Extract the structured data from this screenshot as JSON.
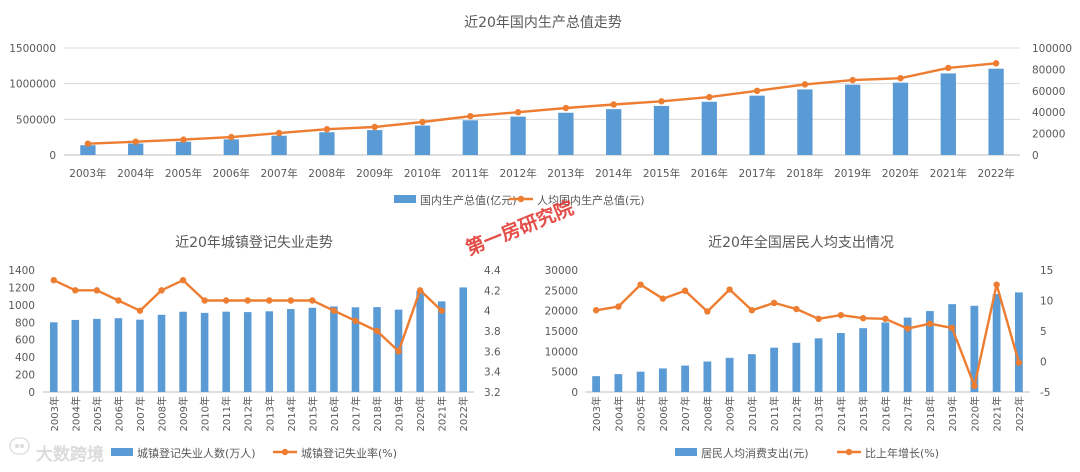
{
  "chart_data": [
    {
      "type": "bar+line",
      "title": "近20年国内生产总值走势",
      "categories": [
        "2003年",
        "2004年",
        "2005年",
        "2006年",
        "2007年",
        "2008年",
        "2009年",
        "2010年",
        "2011年",
        "2012年",
        "2013年",
        "2014年",
        "2015年",
        "2016年",
        "2017年",
        "2018年",
        "2019年",
        "2020年",
        "2021年",
        "2022年"
      ],
      "y_left_ticks": [
        "0",
        "500000",
        "1000000",
        "1500000"
      ],
      "ylim_left": [
        0,
        1500000
      ],
      "y_right_ticks": [
        "0",
        "20000",
        "40000",
        "60000",
        "80000",
        "100000"
      ],
      "ylim_right": [
        0,
        100000
      ],
      "series": [
        {
          "name": "国内生产总值(亿元)",
          "kind": "bar",
          "axis": "left",
          "color": "#5b9bd5",
          "values": [
            137000,
            161000,
            186000,
            219000,
            270000,
            319000,
            349000,
            413000,
            487000,
            538000,
            592000,
            643000,
            688000,
            746000,
            832000,
            919000,
            986000,
            1014000,
            1144000,
            1210000
          ]
        },
        {
          "name": "人均国内生产总值(元)",
          "kind": "line",
          "axis": "right",
          "color": "#ed7d31",
          "values": [
            10600,
            12400,
            14400,
            16700,
            20500,
            24100,
            26200,
            30800,
            36300,
            40000,
            43900,
            47200,
            50200,
            54100,
            60000,
            66000,
            70000,
            71800,
            81400,
            85700
          ]
        }
      ]
    },
    {
      "type": "bar+line",
      "title": "近20年城镇登记失业走势",
      "categories": [
        "2003年",
        "2004年",
        "2005年",
        "2006年",
        "2007年",
        "2008年",
        "2009年",
        "2010年",
        "2011年",
        "2012年",
        "2013年",
        "2014年",
        "2015年",
        "2016年",
        "2017年",
        "2018年",
        "2019年",
        "2020年",
        "2021年",
        "2022年"
      ],
      "y_left_ticks": [
        "0",
        "200",
        "400",
        "600",
        "800",
        "1000",
        "1200",
        "1400"
      ],
      "ylim_left": [
        0,
        1400
      ],
      "y_right_ticks": [
        "3.2",
        "3.4",
        "3.6",
        "3.8",
        "4",
        "4.2",
        "4.4"
      ],
      "ylim_right": [
        3.2,
        4.4
      ],
      "series": [
        {
          "name": "城镇登记失业人数(万人)",
          "kind": "bar",
          "axis": "left",
          "color": "#5b9bd5",
          "values": [
            800,
            827,
            839,
            847,
            830,
            886,
            921,
            908,
            922,
            917,
            926,
            952,
            966,
            982,
            972,
            974,
            945,
            1160,
            1040,
            1200
          ]
        },
        {
          "name": "城镇登记失业率(%)",
          "kind": "line",
          "axis": "right",
          "color": "#ed7d31",
          "values": [
            4.3,
            4.2,
            4.2,
            4.1,
            4.0,
            4.2,
            4.3,
            4.1,
            4.1,
            4.1,
            4.1,
            4.1,
            4.1,
            4.0,
            3.9,
            3.8,
            3.6,
            4.2,
            4.0,
            null
          ]
        }
      ]
    },
    {
      "type": "bar+line",
      "title": "近20年全国居民人均支出情况",
      "categories": [
        "2003年",
        "2004年",
        "2005年",
        "2006年",
        "2007年",
        "2008年",
        "2009年",
        "2010年",
        "2011年",
        "2012年",
        "2013年",
        "2014年",
        "2015年",
        "2016年",
        "2017年",
        "2018年",
        "2019年",
        "2020年",
        "2021年",
        "2022年"
      ],
      "y_left_ticks": [
        "0",
        "5000",
        "10000",
        "15000",
        "20000",
        "25000",
        "30000"
      ],
      "ylim_left": [
        0,
        30000
      ],
      "y_right_ticks": [
        "-5",
        "0",
        "5",
        "10",
        "15"
      ],
      "ylim_right": [
        -5,
        15
      ],
      "series": [
        {
          "name": "居民人均消费支出(元)",
          "kind": "bar",
          "axis": "left",
          "color": "#5b9bd5",
          "values": [
            3900,
            4400,
            5000,
            5800,
            6500,
            7500,
            8400,
            9300,
            10900,
            12100,
            13200,
            14500,
            15700,
            17100,
            18300,
            19900,
            21600,
            21200,
            24100,
            24500
          ]
        },
        {
          "name": "比上年增长(%)",
          "kind": "line",
          "axis": "right",
          "color": "#ed7d31",
          "values": [
            8.4,
            9.0,
            12.6,
            10.3,
            11.6,
            8.2,
            11.8,
            8.4,
            9.6,
            8.6,
            7.0,
            7.6,
            7.1,
            7.0,
            5.4,
            6.2,
            5.5,
            -4.0,
            12.6,
            -0.2
          ]
        }
      ]
    }
  ],
  "watermark": "第一房研究院",
  "logo_text": "大数跨境"
}
